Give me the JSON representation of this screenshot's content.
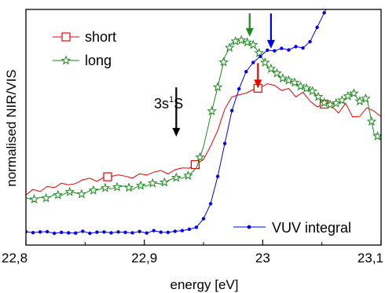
{
  "chart_data": {
    "type": "line",
    "title": "",
    "xlabel": "energy [eV]",
    "ylabel": "normalised NIR/VIS",
    "xlim": [
      22.8,
      23.1
    ],
    "ylim": [
      0,
      1
    ],
    "x_ticks": [
      22.8,
      22.9,
      23.0,
      23.1
    ],
    "x_tick_labels": [
      "22,8",
      "22,9",
      "23",
      "23,1"
    ],
    "grid": false,
    "legend_position": "top-left",
    "annotation": {
      "text_base": "3s",
      "text_sup": "1",
      "text_tail": "S",
      "x": 22.927,
      "arrow_from_y": 0.652,
      "arrow_to_y": 0.432,
      "color": "#000000"
    },
    "arrows": [
      {
        "series": "long",
        "x": 22.989,
        "from_y": 0.982,
        "to_y": 0.878,
        "color": "#1a8a1a"
      },
      {
        "series": "VUV integral",
        "x": 23.007,
        "from_y": 0.982,
        "to_y": 0.825,
        "color": "#0000ee"
      },
      {
        "series": "short",
        "x": 22.996,
        "from_y": 0.76,
        "to_y": 0.648,
        "color": "#ee0000"
      }
    ],
    "series": [
      {
        "name": "short",
        "color": "#ee0000",
        "marker": "square",
        "marker_x": [
          22.869,
          22.943,
          22.996,
          23.052
        ],
        "x": [
          22.8,
          22.806,
          22.812,
          22.818,
          22.824,
          22.83,
          22.836,
          22.842,
          22.848,
          22.854,
          22.86,
          22.866,
          22.872,
          22.878,
          22.884,
          22.89,
          22.896,
          22.902,
          22.908,
          22.914,
          22.92,
          22.926,
          22.932,
          22.938,
          22.944,
          22.95,
          22.956,
          22.962,
          22.968,
          22.974,
          22.98,
          22.986,
          22.992,
          22.998,
          23.004,
          23.01,
          23.016,
          23.022,
          23.028,
          23.034,
          23.04,
          23.046,
          23.052,
          23.058,
          23.064,
          23.07,
          23.076,
          23.082,
          23.088,
          23.094,
          23.1
        ],
        "y": [
          0.171,
          0.196,
          0.186,
          0.209,
          0.204,
          0.224,
          0.216,
          0.222,
          0.239,
          0.246,
          0.232,
          0.251,
          0.254,
          0.261,
          0.255,
          0.246,
          0.266,
          0.26,
          0.273,
          0.281,
          0.265,
          0.284,
          0.292,
          0.291,
          0.31,
          0.33,
          0.389,
          0.459,
          0.555,
          0.609,
          0.619,
          0.626,
          0.642,
          0.651,
          0.668,
          0.661,
          0.638,
          0.647,
          0.609,
          0.63,
          0.591,
          0.565,
          0.577,
          0.571,
          0.537,
          0.581,
          0.52,
          0.522,
          0.561,
          0.546,
          0.521
        ]
      },
      {
        "name": "long",
        "color": "#1a8a1a",
        "marker": "star",
        "marker_x": [
          22.807,
          22.817,
          22.827,
          22.837,
          22.847,
          22.857,
          22.867,
          22.877,
          22.887,
          22.897,
          22.907,
          22.917,
          22.927,
          22.937,
          22.947,
          22.957,
          22.962,
          22.967,
          22.972,
          22.977,
          22.982,
          22.987,
          22.992,
          22.997,
          23.002,
          23.007,
          23.012,
          23.017,
          23.022,
          23.027,
          23.032,
          23.037,
          23.042,
          23.047,
          23.052,
          23.057,
          23.062,
          23.067,
          23.072,
          23.077,
          23.082,
          23.087,
          23.092,
          23.097
        ],
        "x": [
          22.8,
          22.806,
          22.812,
          22.818,
          22.824,
          22.83,
          22.836,
          22.842,
          22.848,
          22.854,
          22.86,
          22.866,
          22.872,
          22.878,
          22.884,
          22.89,
          22.896,
          22.902,
          22.908,
          22.914,
          22.92,
          22.926,
          22.932,
          22.938,
          22.944,
          22.95,
          22.956,
          22.962,
          22.968,
          22.974,
          22.98,
          22.986,
          22.992,
          22.998,
          23.004,
          23.01,
          23.016,
          23.022,
          23.028,
          23.034,
          23.04,
          23.046,
          23.052,
          23.058,
          23.064,
          23.07,
          23.076,
          23.082,
          23.088,
          23.094,
          23.1
        ],
        "y": [
          0.159,
          0.15,
          0.161,
          0.156,
          0.173,
          0.169,
          0.186,
          0.18,
          0.174,
          0.19,
          0.193,
          0.203,
          0.199,
          0.208,
          0.212,
          0.196,
          0.214,
          0.211,
          0.226,
          0.22,
          0.235,
          0.249,
          0.246,
          0.26,
          0.292,
          0.387,
          0.524,
          0.653,
          0.787,
          0.85,
          0.866,
          0.855,
          0.842,
          0.798,
          0.745,
          0.725,
          0.694,
          0.683,
          0.671,
          0.65,
          0.645,
          0.615,
          0.583,
          0.573,
          0.585,
          0.603,
          0.632,
          0.59,
          0.604,
          0.447,
          0.42
        ]
      },
      {
        "name": "VUV integral",
        "color": "#0000ee",
        "marker": "dot",
        "x": [
          22.8,
          22.806,
          22.812,
          22.818,
          22.824,
          22.83,
          22.836,
          22.842,
          22.848,
          22.854,
          22.86,
          22.866,
          22.872,
          22.878,
          22.884,
          22.89,
          22.896,
          22.902,
          22.908,
          22.914,
          22.92,
          22.926,
          22.932,
          22.938,
          22.944,
          22.95,
          22.956,
          22.962,
          22.968,
          22.974,
          22.98,
          22.986,
          22.992,
          22.998,
          23.004,
          23.01,
          23.016,
          23.022,
          23.028,
          23.034,
          23.04,
          23.046,
          23.052,
          23.058
        ],
        "y": [
          0.007,
          0.003,
          0.006,
          0.007,
          0.0,
          0.004,
          0.002,
          0.001,
          0.009,
          0.0,
          0.005,
          0.006,
          0.002,
          0.006,
          0.004,
          0.002,
          0.008,
          0.001,
          0.012,
          0.005,
          0.004,
          0.009,
          0.012,
          0.018,
          0.027,
          0.065,
          0.132,
          0.254,
          0.401,
          0.548,
          0.645,
          0.722,
          0.763,
          0.79,
          0.818,
          0.815,
          0.826,
          0.819,
          0.834,
          0.828,
          0.856,
          0.92,
          0.985,
          1.05
        ]
      }
    ]
  }
}
